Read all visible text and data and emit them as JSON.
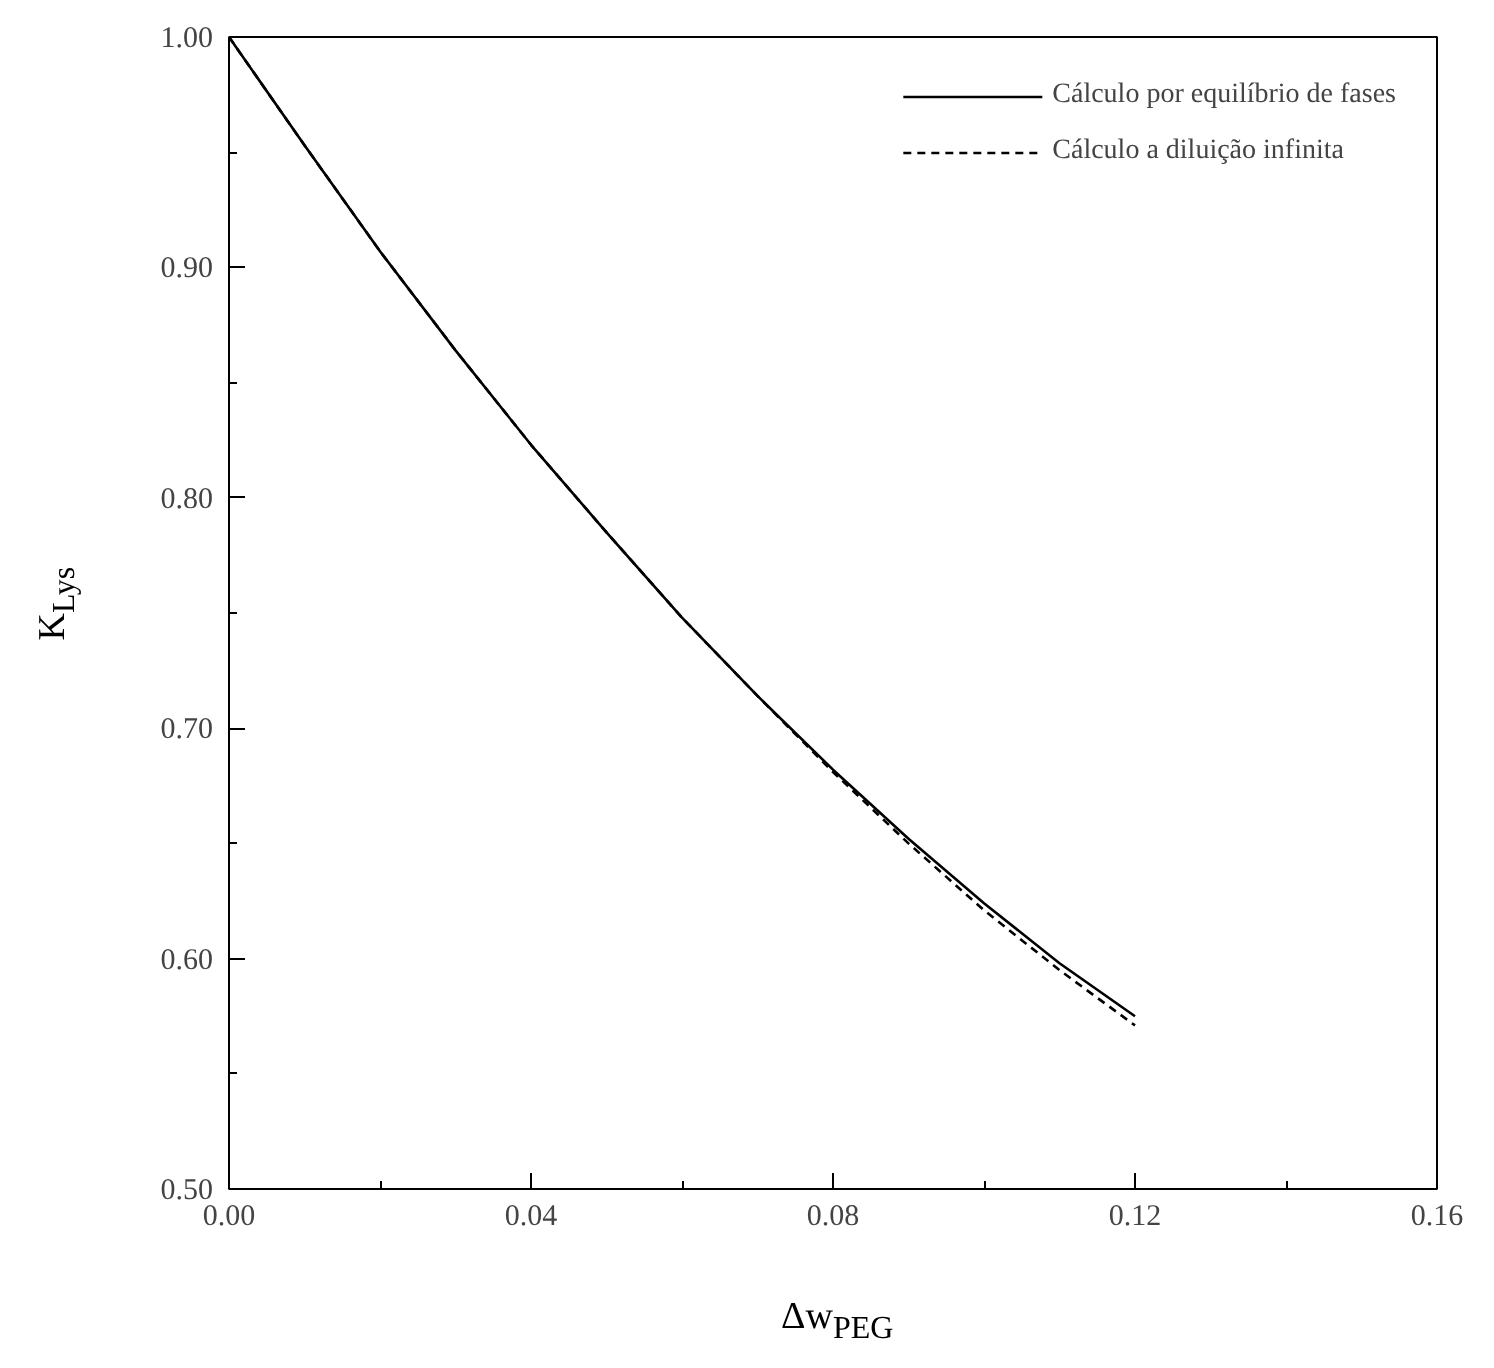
{
  "chart_data": {
    "type": "line",
    "xlabel": "Δw$_{PEG}$",
    "ylabel": "K$_{Lys}$",
    "x": [
      0,
      0.01,
      0.02,
      0.03,
      0.04,
      0.05,
      0.06,
      0.07,
      0.08,
      0.09,
      0.1,
      0.11,
      0.12
    ],
    "series": [
      {
        "name": "Cálculo por equilíbrio de fases",
        "color": "#000000",
        "line_style": "solid",
        "values": [
          1.0,
          0.953,
          0.907,
          0.864,
          0.823,
          0.785,
          0.748,
          0.714,
          0.682,
          0.652,
          0.624,
          0.598,
          0.575
        ]
      },
      {
        "name": "Cálculo a diluição infinita",
        "color": "#000000",
        "line_style": "dashed",
        "values": [
          1.0,
          0.953,
          0.907,
          0.864,
          0.823,
          0.785,
          0.748,
          0.714,
          0.681,
          0.65,
          0.621,
          0.595,
          0.571
        ]
      }
    ],
    "xlim": [
      0,
      0.16
    ],
    "ylim": [
      0.5,
      1.0
    ],
    "xticks": [
      {
        "value": 0,
        "label": "0.00"
      },
      {
        "value": 0.04,
        "label": "0.04"
      },
      {
        "value": 0.08,
        "label": "0.08"
      },
      {
        "value": 0.12,
        "label": "0.12"
      },
      {
        "value": 0.16,
        "label": "0.16"
      }
    ],
    "yticks": [
      {
        "value": 0.5,
        "label": "0.50"
      },
      {
        "value": 0.6,
        "label": "0.60"
      },
      {
        "value": 0.7,
        "label": "0.70"
      },
      {
        "value": 0.8,
        "label": "0.80"
      },
      {
        "value": 0.9,
        "label": "0.90"
      },
      {
        "value": 1.0,
        "label": "1.00"
      }
    ],
    "legend": "top right",
    "grid": false,
    "marker": "none"
  }
}
